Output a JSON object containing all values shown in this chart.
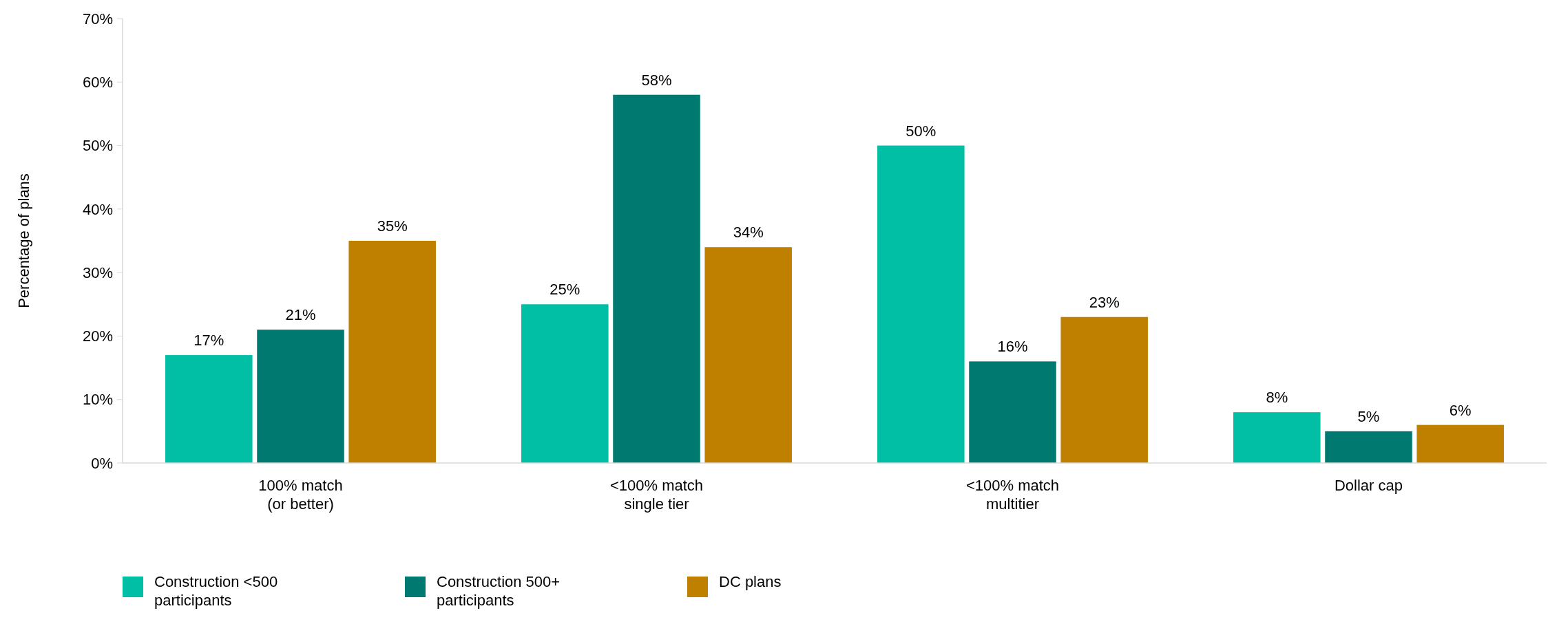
{
  "chart_data": {
    "type": "bar",
    "ylabel": "Percentage of plans",
    "categories": [
      "100% match (or better)",
      "<100% match single tier",
      "<100% match multitier",
      "Dollar cap"
    ],
    "series": [
      {
        "name": "Construction <500 participants",
        "color": "#00bfa5",
        "values": [
          17,
          25,
          50,
          8
        ],
        "value_labels": [
          "17%",
          "25%",
          "50%",
          "8%"
        ]
      },
      {
        "name": "Construction 500+ participants",
        "color": "#007a70",
        "values": [
          21,
          58,
          16,
          5
        ],
        "value_labels": [
          "21%",
          "58%",
          "16%",
          "5%"
        ]
      },
      {
        "name": "DC plans",
        "color": "#bf8000",
        "values": [
          35,
          34,
          23,
          6
        ],
        "value_labels": [
          "35%",
          "34%",
          "23%",
          "6%"
        ]
      }
    ],
    "ylim": [
      0,
      70
    ],
    "yticks": [
      {
        "value": 0,
        "label": "0%"
      },
      {
        "value": 10,
        "label": "10%"
      },
      {
        "value": 20,
        "label": "20%"
      },
      {
        "value": 30,
        "label": "30%"
      },
      {
        "value": 40,
        "label": "40%"
      },
      {
        "value": 50,
        "label": "50%"
      },
      {
        "value": 60,
        "label": "60%"
      },
      {
        "value": 70,
        "label": "70%"
      }
    ],
    "legend": "bottom left",
    "grid": false
  }
}
